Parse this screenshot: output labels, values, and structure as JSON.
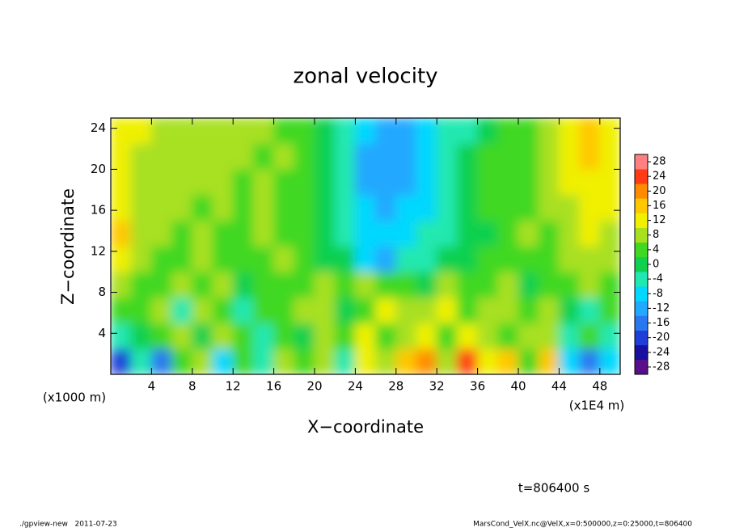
{
  "chart_data": {
    "type": "heatmap",
    "title": "zonal velocity",
    "xlabel": "X−coordinate",
    "ylabel": "Z−coordinate",
    "x_unit_label": "(x1E4 m)",
    "y_unit_label": "(x1000 m)",
    "annotation": "t=806400 s",
    "footer_left": "./gpview-new   2011-07-23",
    "footer_right": "MarsCond_VelX.nc@VelX,x=0:500000,z=0:25000,t=806400",
    "xlim": [
      0,
      50
    ],
    "ylim": [
      0,
      25
    ],
    "xticks": [
      4,
      8,
      12,
      16,
      20,
      24,
      28,
      32,
      36,
      40,
      44,
      48
    ],
    "yticks": [
      4,
      8,
      12,
      16,
      20,
      24
    ],
    "x": [
      1,
      3,
      5,
      7,
      9,
      11,
      13,
      15,
      17,
      19,
      21,
      23,
      25,
      27,
      29,
      31,
      33,
      35,
      37,
      39,
      41,
      43,
      45,
      47,
      49
    ],
    "y": [
      1.25,
      3.75,
      6.25,
      8.75,
      11.25,
      13.75,
      16.25,
      18.75,
      21.25,
      23.75
    ],
    "values": [
      [
        -20,
        -6,
        -18,
        2,
        6,
        -8,
        4,
        -4,
        8,
        2,
        6,
        -6,
        10,
        6,
        14,
        18,
        8,
        22,
        10,
        16,
        4,
        14,
        -10,
        -16,
        -8
      ],
      [
        -4,
        0,
        4,
        8,
        -2,
        6,
        2,
        -6,
        4,
        0,
        6,
        4,
        10,
        2,
        8,
        12,
        2,
        10,
        8,
        4,
        6,
        8,
        -4,
        2,
        -6
      ],
      [
        2,
        4,
        8,
        -4,
        6,
        2,
        -6,
        4,
        2,
        6,
        8,
        0,
        4,
        10,
        6,
        8,
        12,
        4,
        8,
        6,
        2,
        6,
        0,
        -4,
        2
      ],
      [
        6,
        2,
        4,
        8,
        2,
        6,
        0,
        4,
        2,
        4,
        6,
        2,
        8,
        4,
        2,
        0,
        6,
        2,
        4,
        6,
        0,
        4,
        2,
        6,
        4
      ],
      [
        10,
        6,
        4,
        2,
        6,
        4,
        2,
        4,
        6,
        2,
        0,
        -2,
        -8,
        -12,
        -6,
        -4,
        0,
        -2,
        2,
        4,
        2,
        4,
        6,
        8,
        6
      ],
      [
        14,
        8,
        6,
        4,
        6,
        4,
        4,
        6,
        4,
        2,
        0,
        -4,
        -8,
        -10,
        -8,
        -6,
        -4,
        -2,
        0,
        4,
        6,
        4,
        6,
        10,
        8
      ],
      [
        10,
        8,
        6,
        6,
        4,
        6,
        4,
        6,
        4,
        4,
        0,
        -6,
        -10,
        -12,
        -10,
        -8,
        -6,
        -2,
        2,
        4,
        4,
        6,
        8,
        12,
        10
      ],
      [
        10,
        8,
        6,
        6,
        6,
        6,
        4,
        6,
        4,
        2,
        0,
        -6,
        -12,
        -14,
        -12,
        -8,
        -6,
        -2,
        2,
        4,
        4,
        6,
        10,
        12,
        12
      ],
      [
        10,
        8,
        6,
        6,
        6,
        6,
        6,
        4,
        6,
        2,
        0,
        -6,
        -12,
        -14,
        -14,
        -10,
        -6,
        -2,
        2,
        4,
        4,
        6,
        10,
        14,
        12
      ],
      [
        10,
        10,
        6,
        6,
        6,
        8,
        6,
        6,
        4,
        4,
        -2,
        -6,
        -10,
        -14,
        -12,
        -10,
        -6,
        -4,
        0,
        4,
        4,
        6,
        10,
        14,
        10
      ]
    ],
    "colorbar": {
      "ticks": [
        -28,
        -24,
        -20,
        -16,
        -12,
        -8,
        -4,
        0,
        4,
        8,
        12,
        16,
        20,
        24,
        28
      ],
      "colors": [
        "#5a0f8a",
        "#1a0fa0",
        "#1f3fd8",
        "#2a78f0",
        "#22a8ff",
        "#00d8ff",
        "#20e8b0",
        "#10d050",
        "#40d820",
        "#a8e020",
        "#f0f000",
        "#ffc800",
        "#ff8c00",
        "#ff3c14",
        "#ff8080"
      ]
    }
  }
}
